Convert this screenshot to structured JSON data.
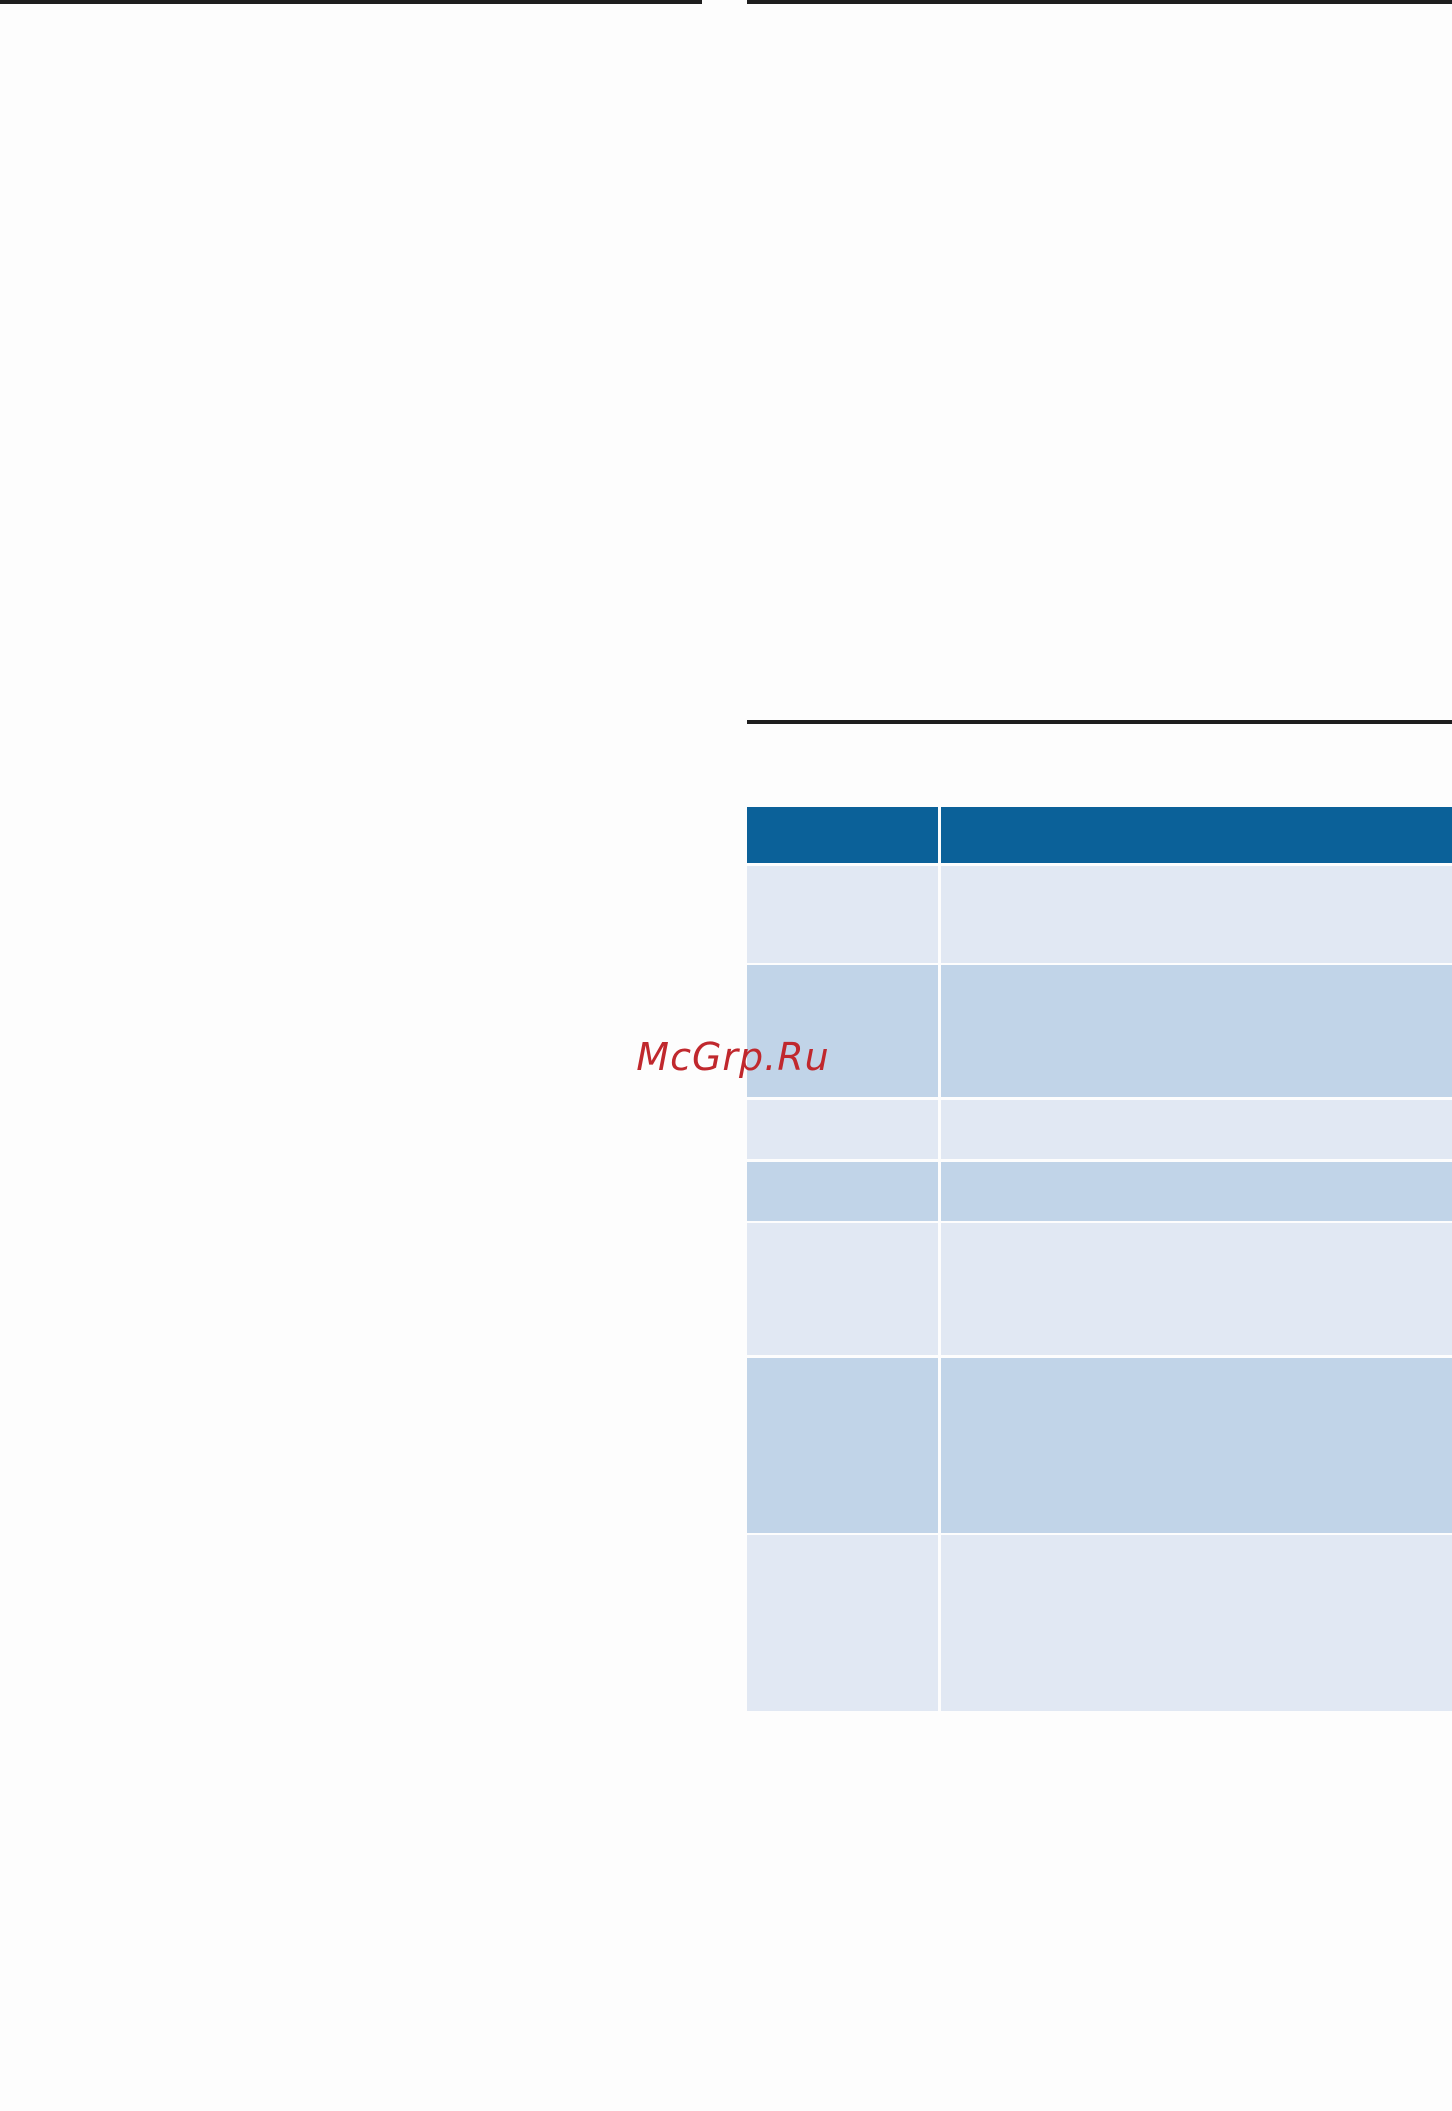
{
  "watermark": "McGrp.Ru"
}
